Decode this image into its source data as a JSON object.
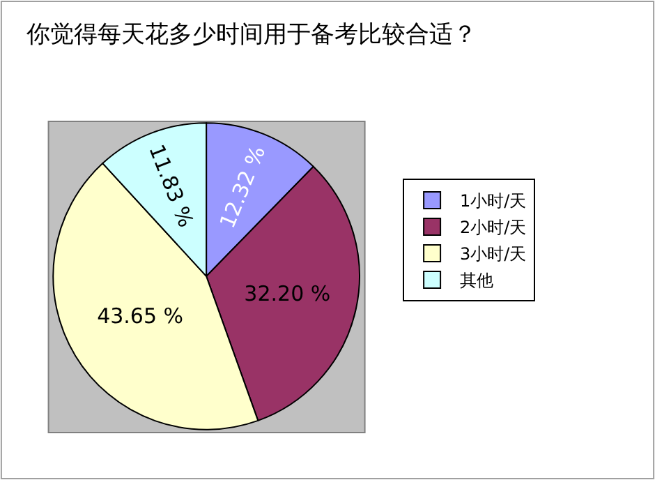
{
  "chart_data": {
    "type": "pie",
    "title": "你觉得每天花多少时间用于备考比较合适？",
    "categories": [
      "1小时/天",
      "2小时/天",
      "3小时/天",
      "其他"
    ],
    "values": [
      12.32,
      32.2,
      43.65,
      11.83
    ],
    "value_labels": [
      "12.32 %",
      "32.20 %",
      "43.65 %",
      "11.83 %"
    ],
    "colors": [
      "#9999ff",
      "#993366",
      "#ffffcc",
      "#ccffff"
    ],
    "legend": "right"
  }
}
